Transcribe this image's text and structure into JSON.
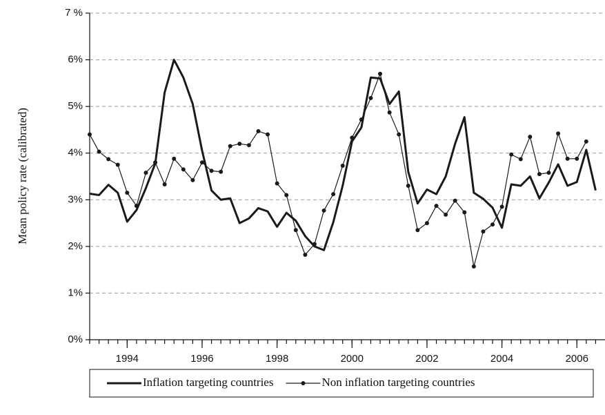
{
  "chart_data": {
    "type": "line",
    "y_label": "Mean policy rate (calibrated)",
    "x": [
      1993,
      1993.25,
      1993.5,
      1993.75,
      1994,
      1994.25,
      1994.5,
      1994.75,
      1995,
      1995.25,
      1995.5,
      1995.75,
      1996,
      1996.25,
      1996.5,
      1996.75,
      1997,
      1997.25,
      1997.5,
      1997.75,
      1998,
      1998.25,
      1998.5,
      1998.75,
      1999,
      1999.25,
      1999.5,
      1999.75,
      2000,
      2000.25,
      2000.5,
      2000.75,
      2001,
      2001.25,
      2001.5,
      2001.75,
      2002,
      2002.25,
      2002.5,
      2002.75,
      2003,
      2003.25,
      2003.5,
      2003.75,
      2004,
      2004.25,
      2004.5,
      2004.75,
      2005,
      2005.25,
      2005.5,
      2005.75,
      2006,
      2006.25,
      2006.5
    ],
    "series": [
      {
        "name": "Inflation targeting countries",
        "color": "#1a1a1a",
        "line_width": 3,
        "values": [
          3.13,
          3.1,
          3.32,
          3.15,
          2.53,
          2.78,
          3.25,
          3.78,
          5.3,
          6.0,
          5.62,
          5.05,
          4.05,
          3.2,
          3.0,
          3.03,
          2.5,
          2.6,
          2.82,
          2.75,
          2.42,
          2.72,
          2.55,
          2.22,
          2.0,
          1.92,
          2.52,
          3.3,
          4.25,
          4.55,
          5.62,
          5.6,
          5.05,
          5.32,
          3.6,
          2.92,
          3.22,
          3.12,
          3.5,
          4.2,
          4.77,
          3.15,
          3.02,
          2.83,
          2.4,
          3.33,
          3.3,
          3.5,
          3.03,
          3.37,
          3.76,
          3.3,
          3.38,
          4.07,
          3.2
        ]
      },
      {
        "name": "Non inflation targeting countries",
        "color": "#1a1a1a",
        "line_width": 1.2,
        "marker": "circle",
        "values": [
          4.4,
          4.03,
          3.87,
          3.75,
          3.15,
          2.87,
          3.58,
          3.8,
          3.33,
          3.88,
          3.65,
          3.42,
          3.8,
          3.62,
          3.6,
          4.15,
          4.2,
          4.17,
          4.47,
          4.4,
          3.35,
          3.1,
          2.35,
          1.82,
          2.05,
          2.77,
          3.12,
          3.73,
          4.33,
          4.72,
          5.18,
          5.7,
          4.87,
          4.4,
          3.3,
          2.35,
          2.5,
          2.87,
          2.68,
          2.98,
          2.73,
          1.57,
          2.32,
          2.47,
          2.85,
          3.97,
          3.87,
          4.35,
          3.55,
          3.58,
          4.42,
          3.88,
          3.88,
          4.25,
          null
        ]
      }
    ],
    "xlim": [
      1993,
      2006.75
    ],
    "xticks": [
      1994,
      1996,
      1998,
      2000,
      2002,
      2004,
      2006
    ],
    "ylim": [
      0,
      7
    ],
    "yticks": [
      {
        "value": 0,
        "label": "0%"
      },
      {
        "value": 1,
        "label": "1%"
      },
      {
        "value": 2,
        "label": "2%"
      },
      {
        "value": 3,
        "label": "3%"
      },
      {
        "value": 4,
        "label": "4%"
      },
      {
        "value": 5,
        "label": "5%"
      },
      {
        "value": 6,
        "label": "6%"
      },
      {
        "value": 7,
        "label": "7 %"
      }
    ],
    "grid": true,
    "legend": "bottom"
  }
}
